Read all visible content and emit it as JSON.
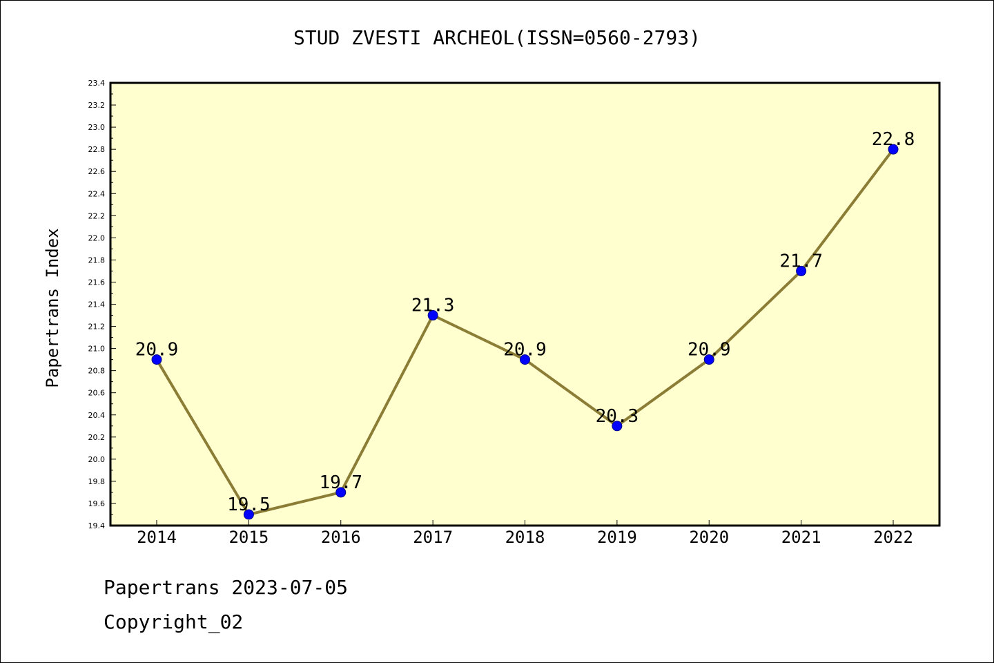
{
  "colors": {
    "plot_background": "#ffffd0",
    "line": "#8b7d35",
    "marker": "#0000ff",
    "marker_edge": "#00008b"
  },
  "footer": {
    "date_line": "Papertrans 2023-07-05",
    "copyright": "Copyright_02"
  },
  "chart_data": {
    "type": "line",
    "title": "STUD ZVESTI ARCHEOL(ISSN=0560-2793)",
    "xlabel": "",
    "ylabel": "Papertrans Index",
    "categories": [
      "2014",
      "2015",
      "2016",
      "2017",
      "2018",
      "2019",
      "2020",
      "2021",
      "2022"
    ],
    "series": [
      {
        "values": [
          20.9,
          19.5,
          19.7,
          21.3,
          20.9,
          20.3,
          20.9,
          21.7,
          22.8
        ]
      }
    ],
    "data_labels": [
      "20.9",
      "19.5",
      "19.7",
      "21.3",
      "20.9",
      "20.3",
      "20.9",
      "21.7",
      "22.8"
    ],
    "ylim": [
      19.4,
      23.4
    ],
    "yticks": [
      "19.4",
      "19.6",
      "19.8",
      "20.0",
      "20.2",
      "20.4",
      "20.6",
      "20.8",
      "21.0",
      "21.2",
      "21.4",
      "21.6",
      "21.8",
      "22.0",
      "22.2",
      "22.4",
      "22.6",
      "22.8",
      "23.0",
      "23.2",
      "23.4"
    ],
    "grid": false,
    "legend": "none"
  }
}
